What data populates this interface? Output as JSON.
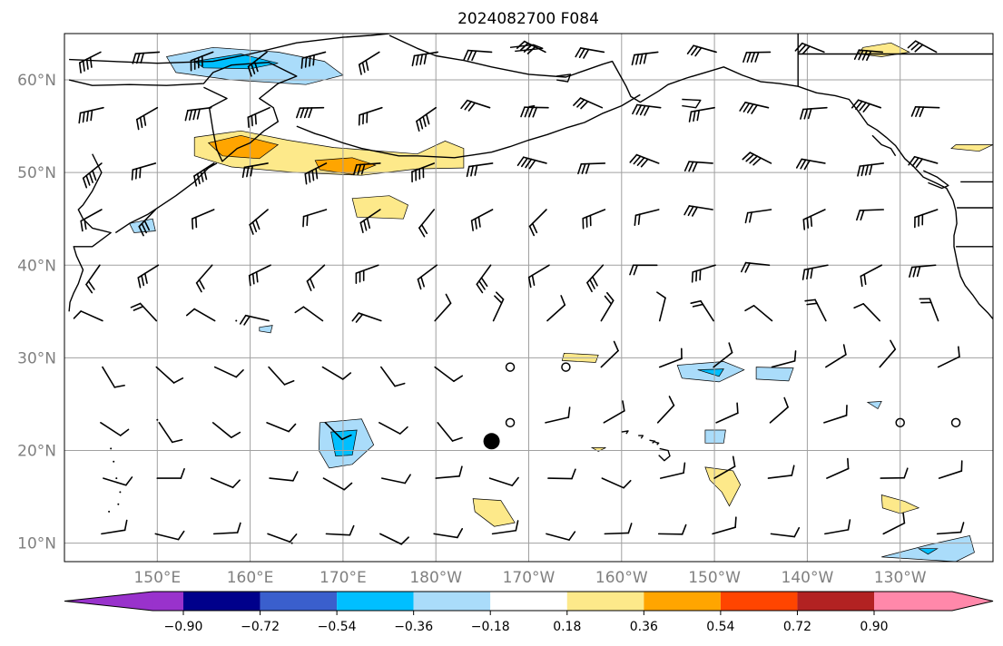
{
  "map": {
    "title": "2024082700 F084",
    "region": "North Pacific",
    "lon_range": [
      140,
      240
    ],
    "lat_range": [
      8,
      65
    ],
    "grid_lon": [
      150,
      160,
      170,
      180,
      190,
      200,
      210,
      220,
      230
    ],
    "grid_lat": [
      10,
      20,
      30,
      40,
      50,
      60
    ],
    "lon_labels": [
      "150°E",
      "160°E",
      "170°E",
      "180°W",
      "170°W",
      "160°W",
      "150°W",
      "140°W",
      "130°W"
    ],
    "lat_labels": [
      "10°N",
      "20°N",
      "30°N",
      "40°N",
      "50°N",
      "60°N"
    ],
    "storm_marker": {
      "name": "storm-center",
      "lon": 186.0,
      "lat": 21.0
    },
    "calm_markers": [
      {
        "lon": 188,
        "lat": 29
      },
      {
        "lon": 194,
        "lat": 29
      },
      {
        "lon": 188,
        "lat": 23
      },
      {
        "lon": 230,
        "lat": 23
      },
      {
        "lon": 236,
        "lat": 23
      }
    ],
    "anomaly_regions": [
      {
        "name": "kamchatka-bering-negative",
        "level": -0.36,
        "color": "#aadcfa",
        "pts": [
          [
            151,
            62.5
          ],
          [
            156,
            63.5
          ],
          [
            163,
            63
          ],
          [
            168,
            62
          ],
          [
            170,
            60.5
          ],
          [
            166,
            59.5
          ],
          [
            158,
            60
          ],
          [
            152,
            60.8
          ]
        ]
      },
      {
        "name": "kamchatka-bering-core",
        "level": -0.54,
        "color": "#00bfff",
        "pts": [
          [
            154,
            62
          ],
          [
            159,
            62.8
          ],
          [
            163,
            61.8
          ],
          [
            160,
            61.2
          ],
          [
            155,
            61.3
          ]
        ]
      },
      {
        "name": "aleutian-positive",
        "level": 0.36,
        "color": "#fde98a",
        "pts": [
          [
            154,
            53.8
          ],
          [
            159,
            54.5
          ],
          [
            164,
            53.5
          ],
          [
            169,
            52.7
          ],
          [
            178,
            52
          ],
          [
            181,
            53.4
          ],
          [
            183,
            52.6
          ],
          [
            183,
            50.5
          ],
          [
            178,
            50.4
          ],
          [
            172,
            49.7
          ],
          [
            165,
            50
          ],
          [
            158,
            50.6
          ],
          [
            154,
            51.8
          ]
        ]
      },
      {
        "name": "aleutian-core-west",
        "level": 0.54,
        "color": "#ffa500",
        "pts": [
          [
            155.5,
            53.2
          ],
          [
            159,
            54
          ],
          [
            163,
            53
          ],
          [
            161,
            51.5
          ],
          [
            157,
            51.8
          ]
        ]
      },
      {
        "name": "aleutian-core-east",
        "level": 0.54,
        "color": "#ffa500",
        "pts": [
          [
            167,
            51.3
          ],
          [
            171,
            51.6
          ],
          [
            173.5,
            50.8
          ],
          [
            171,
            49.8
          ],
          [
            167.5,
            50.3
          ]
        ]
      },
      {
        "name": "north-pacific-positive",
        "level": 0.36,
        "color": "#fde98a",
        "pts": [
          [
            171,
            47.2
          ],
          [
            175,
            47.5
          ],
          [
            177,
            46.5
          ],
          [
            176.5,
            45
          ],
          [
            171.5,
            45.2
          ]
        ]
      },
      {
        "name": "japan-negative",
        "level": -0.36,
        "color": "#aadcfa",
        "pts": [
          [
            147,
            44.5
          ],
          [
            149.5,
            45
          ],
          [
            149.8,
            43.7
          ],
          [
            147.5,
            43.5
          ]
        ]
      },
      {
        "name": "gulf-alaska-positive-north",
        "level": 0.36,
        "color": "#fde98a",
        "pts": [
          [
            226,
            63.5
          ],
          [
            229,
            64
          ],
          [
            231,
            63
          ],
          [
            228,
            62.5
          ],
          [
            225.5,
            62.8
          ]
        ]
      },
      {
        "name": "gulf-alaska-positive-south",
        "level": 0.36,
        "color": "#fde98a",
        "pts": [
          [
            236,
            53
          ],
          [
            240,
            53
          ],
          [
            238.5,
            52.3
          ],
          [
            235.5,
            52.6
          ]
        ]
      },
      {
        "name": "tropical-negative-west",
        "level": -0.36,
        "color": "#aadcfa",
        "pts": [
          [
            167.5,
            23
          ],
          [
            172,
            23.4
          ],
          [
            173.3,
            20.6
          ],
          [
            171,
            18.5
          ],
          [
            168.5,
            18.1
          ],
          [
            167.4,
            20
          ]
        ]
      },
      {
        "name": "tropical-negative-west-core",
        "level": -0.54,
        "color": "#00bfff",
        "pts": [
          [
            168.7,
            22
          ],
          [
            171.5,
            22.2
          ],
          [
            171,
            19.5
          ],
          [
            169.2,
            19.4
          ]
        ]
      },
      {
        "name": "small-negative-1",
        "level": -0.36,
        "color": "#aadcfa",
        "pts": [
          [
            161,
            33.3
          ],
          [
            162.4,
            33.5
          ],
          [
            162.2,
            32.7
          ],
          [
            161,
            32.9
          ]
        ]
      },
      {
        "name": "subtropical-positive",
        "level": 0.36,
        "color": "#fde98a",
        "pts": [
          [
            193.8,
            30.5
          ],
          [
            197.5,
            30.3
          ],
          [
            197.2,
            29.5
          ],
          [
            193.6,
            29.7
          ]
        ]
      },
      {
        "name": "subtropical-negative-east",
        "level": -0.36,
        "color": "#aadcfa",
        "pts": [
          [
            206,
            29.2
          ],
          [
            211,
            29.6
          ],
          [
            213.2,
            28.7
          ],
          [
            210.5,
            27.4
          ],
          [
            206.5,
            27.8
          ]
        ]
      },
      {
        "name": "subtropical-negative-east-core",
        "level": -0.54,
        "color": "#00bfff",
        "pts": [
          [
            208.2,
            28.7
          ],
          [
            211,
            28.8
          ],
          [
            210.5,
            28
          ]
        ]
      },
      {
        "name": "subtropical-negative-east-2",
        "level": -0.36,
        "color": "#aadcfa",
        "pts": [
          [
            214.5,
            29
          ],
          [
            218.5,
            28.9
          ],
          [
            218,
            27.5
          ],
          [
            214.5,
            27.7
          ]
        ]
      },
      {
        "name": "hawaii-east-negative",
        "level": -0.36,
        "color": "#aadcfa",
        "pts": [
          [
            209,
            22.2
          ],
          [
            211.2,
            22.2
          ],
          [
            211,
            20.8
          ],
          [
            209,
            20.8
          ]
        ]
      },
      {
        "name": "hawaii-south-positive",
        "level": 0.36,
        "color": "#fde98a",
        "pts": [
          [
            209,
            18.2
          ],
          [
            212,
            17.8
          ],
          [
            212.8,
            16.3
          ],
          [
            211.6,
            14
          ],
          [
            210.8,
            15.5
          ],
          [
            209.5,
            16.8
          ]
        ]
      },
      {
        "name": "equatorial-positive-west",
        "level": 0.36,
        "color": "#fde98a",
        "pts": [
          [
            184,
            14.8
          ],
          [
            187,
            14.6
          ],
          [
            188.5,
            12.2
          ],
          [
            186.3,
            11.8
          ],
          [
            184.2,
            13.4
          ]
        ]
      },
      {
        "name": "equatorial-positive-east",
        "level": 0.36,
        "color": "#fde98a",
        "pts": [
          [
            228,
            15.2
          ],
          [
            230.5,
            14.5
          ],
          [
            232,
            13.8
          ],
          [
            230,
            13.2
          ],
          [
            228.1,
            13.8
          ]
        ]
      },
      {
        "name": "southeast-negative",
        "level": -0.36,
        "color": "#aadcfa",
        "pts": [
          [
            228,
            8.5
          ],
          [
            233,
            9.8
          ],
          [
            237.5,
            10.8
          ],
          [
            238,
            9
          ],
          [
            236,
            8
          ]
        ]
      },
      {
        "name": "southeast-negative-core",
        "level": -0.54,
        "color": "#00bfff",
        "pts": [
          [
            232,
            9.4
          ],
          [
            234,
            9.4
          ],
          [
            233,
            8.8
          ]
        ]
      },
      {
        "name": "small-positive-hawaii-south",
        "level": 0.36,
        "color": "#fde98a",
        "pts": [
          [
            196.8,
            20.3
          ],
          [
            198.3,
            20.3
          ],
          [
            197.5,
            19.9
          ]
        ]
      },
      {
        "name": "small-negative-east",
        "level": -0.36,
        "color": "#aadcfa",
        "pts": [
          [
            226.5,
            25.2
          ],
          [
            228,
            25.3
          ],
          [
            227.6,
            24.5
          ]
        ]
      }
    ]
  },
  "colorbar": {
    "levels": [
      "−0.90",
      "−0.72",
      "−0.54",
      "−0.36",
      "−0.18",
      "0.18",
      "0.36",
      "0.54",
      "0.72",
      "0.90"
    ],
    "colors": [
      "#9932cc",
      "#00008b",
      "#3a5fcd",
      "#00bfff",
      "#aadcfa",
      "#ffffff",
      "#fde98a",
      "#ffa500",
      "#ff4500",
      "#b22222",
      "#ff88aa"
    ]
  }
}
